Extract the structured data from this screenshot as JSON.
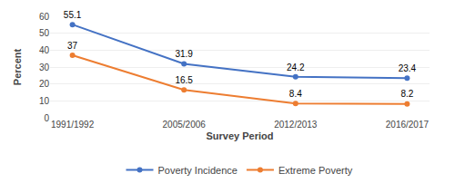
{
  "chart_data": {
    "type": "line",
    "categories": [
      "1991/1992",
      "2005/2006",
      "2012/2013",
      "2016/2017"
    ],
    "series": [
      {
        "name": "Poverty Incidence",
        "color": "#4472C4",
        "values": [
          55.1,
          31.9,
          24.2,
          23.4
        ]
      },
      {
        "name": "Extreme Poverty",
        "color": "#ED7D31",
        "values": [
          37,
          16.5,
          8.4,
          8.2
        ]
      }
    ],
    "xlabel": "Survey Period",
    "ylabel": "Percent",
    "ylim": [
      0,
      60
    ],
    "yticks": [
      0,
      10,
      20,
      30,
      40,
      50,
      60
    ],
    "grid": true,
    "legend": "bottom",
    "data_labels": true,
    "marker": "circle"
  }
}
